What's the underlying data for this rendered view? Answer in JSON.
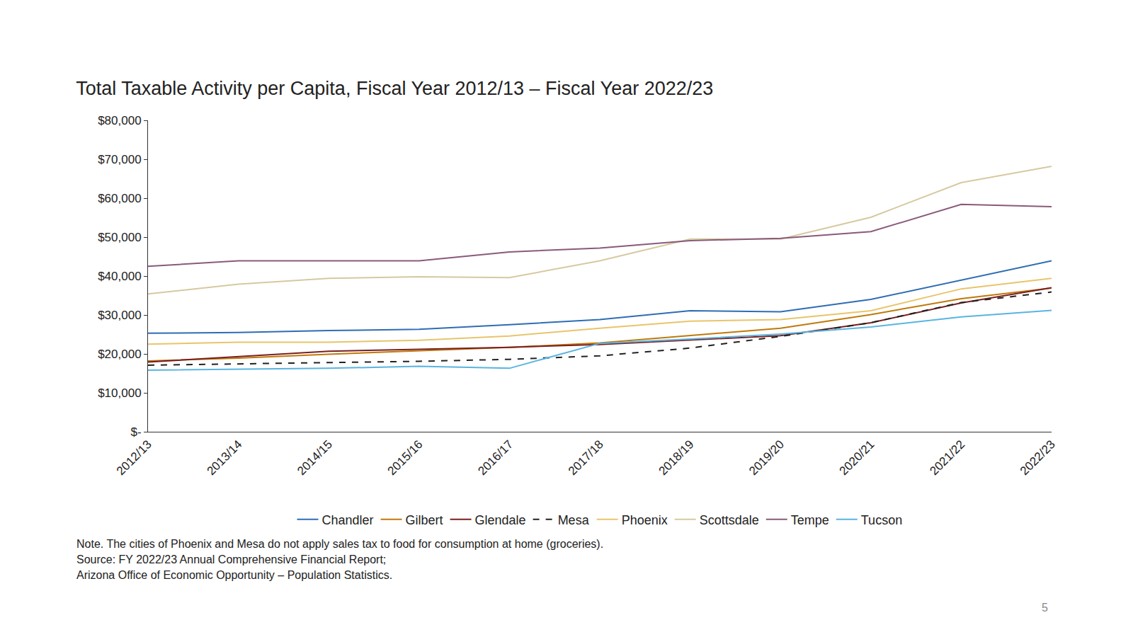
{
  "chart_data": {
    "type": "line",
    "title": "Total Taxable Activity per Capita, Fiscal Year 2012/13 – Fiscal Year 2022/23",
    "categories": [
      "2012/13",
      "2013/14",
      "2014/15",
      "2015/16",
      "2016/17",
      "2017/18",
      "2018/19",
      "2019/20",
      "2020/21",
      "2021/22",
      "2022/23"
    ],
    "series": [
      {
        "name": "Chandler",
        "color": "#2e6db4",
        "line_style": "solid",
        "values": [
          25300,
          25500,
          26000,
          26300,
          27500,
          28800,
          31100,
          30800,
          34000,
          39000,
          43900
        ]
      },
      {
        "name": "Gilbert",
        "color": "#c0790a",
        "line_style": "solid",
        "values": [
          18200,
          18900,
          19900,
          20800,
          21700,
          22800,
          24700,
          26600,
          30100,
          34200,
          36900
        ]
      },
      {
        "name": "Glendale",
        "color": "#7a1f1f",
        "line_style": "solid",
        "values": [
          17900,
          19300,
          20700,
          21200,
          21700,
          22400,
          23600,
          24700,
          28000,
          33100,
          37000
        ]
      },
      {
        "name": "Mesa",
        "color": "#222222",
        "line_style": "dashed",
        "values": [
          17100,
          17400,
          17800,
          18100,
          18600,
          19500,
          21500,
          24500,
          28000,
          33200,
          35900
        ]
      },
      {
        "name": "Phoenix",
        "color": "#e8c56b",
        "line_style": "solid",
        "values": [
          22500,
          23000,
          23000,
          23500,
          24600,
          26600,
          28400,
          28800,
          31100,
          36700,
          39400
        ]
      },
      {
        "name": "Scottsdale",
        "color": "#d6c9a0",
        "line_style": "solid",
        "values": [
          35400,
          37900,
          39400,
          39800,
          39600,
          43900,
          49500,
          49500,
          55100,
          64000,
          68200
        ]
      },
      {
        "name": "Tempe",
        "color": "#8a5a7a",
        "line_style": "solid",
        "values": [
          42500,
          43900,
          43900,
          43900,
          46200,
          47200,
          49100,
          49700,
          51400,
          58400,
          57800
        ]
      },
      {
        "name": "Tucson",
        "color": "#5ab4e0",
        "line_style": "solid",
        "values": [
          15800,
          16000,
          16300,
          16800,
          16300,
          22700,
          23800,
          25100,
          26900,
          29500,
          31200
        ]
      }
    ],
    "ylim": [
      0,
      80000
    ],
    "yticks": [
      {
        "value": 0,
        "label": "$-"
      },
      {
        "value": 10000,
        "label": "$10,000"
      },
      {
        "value": 20000,
        "label": "$20,000"
      },
      {
        "value": 30000,
        "label": "$30,000"
      },
      {
        "value": 40000,
        "label": "$40,000"
      },
      {
        "value": 50000,
        "label": "$50,000"
      },
      {
        "value": 60000,
        "label": "$60,000"
      },
      {
        "value": 70000,
        "label": "$70,000"
      },
      {
        "value": 80000,
        "label": "$80,000"
      }
    ],
    "grid": false,
    "legend": "bottom",
    "annotations": [
      "Note. The cities of Phoenix and Mesa do not apply sales tax to food for consumption at home (groceries).",
      "Source: FY 2022/23 Annual Comprehensive Financial Report;",
      "Arizona Office of Economic Opportunity – Population Statistics."
    ],
    "page_number": "5"
  }
}
